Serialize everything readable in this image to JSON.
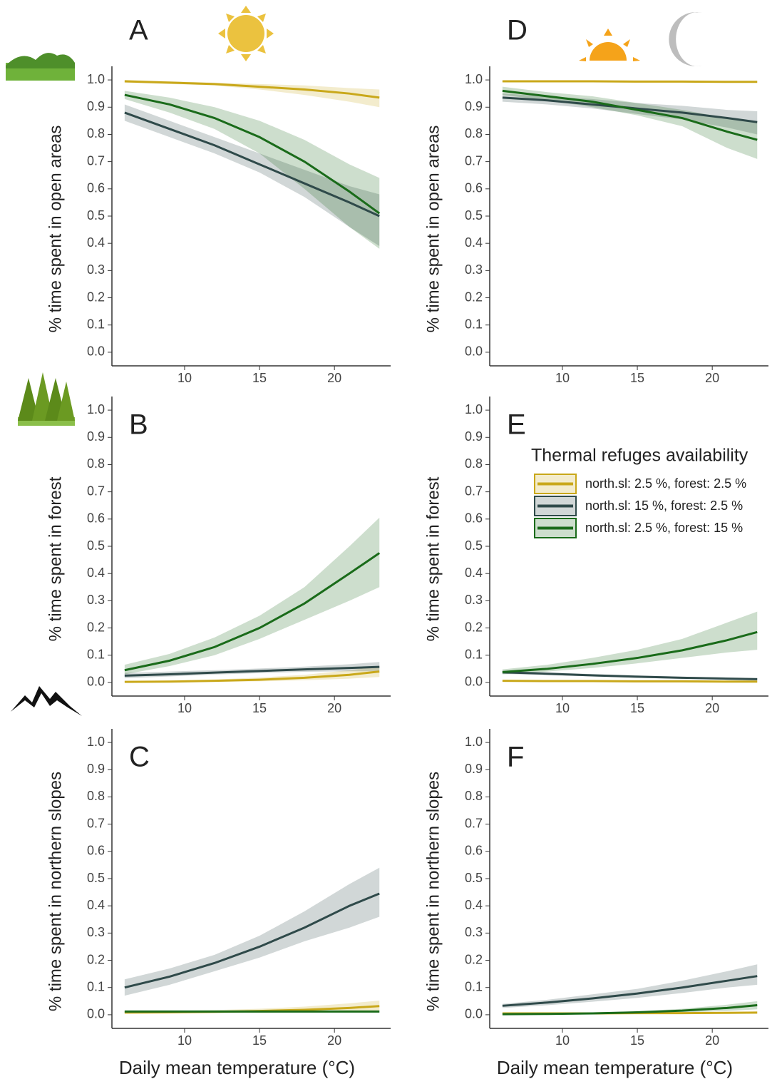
{
  "chart_data": [
    {
      "type": "line",
      "panel": "A",
      "ylabel": "% time spent in open areas",
      "xlim": [
        5.15,
        23.75
      ],
      "ylim": [
        -0.05,
        1.05
      ],
      "xticks": [
        10,
        15,
        20
      ],
      "yticks": [
        {
          "value": 0,
          "label": "0.0"
        },
        {
          "value": 0.1,
          "label": "0.1"
        },
        {
          "value": 0.2,
          "label": "0.2"
        },
        {
          "value": 0.3,
          "label": "0.3"
        },
        {
          "value": 0.4,
          "label": "0.4"
        },
        {
          "value": 0.5,
          "label": "0.5"
        },
        {
          "value": 0.6,
          "label": "0.6"
        },
        {
          "value": 0.7,
          "label": "0.7"
        },
        {
          "value": 0.8,
          "label": "0.8"
        },
        {
          "value": 0.9,
          "label": "0.9"
        },
        {
          "value": 1,
          "label": "1.0"
        }
      ],
      "x": [
        6,
        9,
        12,
        15,
        18,
        21,
        23
      ],
      "series": [
        {
          "color": "#c9a81a",
          "values": [
            0.995,
            0.99,
            0.985,
            0.975,
            0.965,
            0.95,
            0.935
          ],
          "lower": [
            0.99,
            0.985,
            0.98,
            0.965,
            0.945,
            0.92,
            0.9
          ],
          "upper": [
            1.0,
            0.995,
            0.99,
            0.985,
            0.98,
            0.97,
            0.965
          ]
        },
        {
          "color": "#2f4a4a",
          "values": [
            0.88,
            0.82,
            0.76,
            0.69,
            0.62,
            0.55,
            0.5
          ],
          "lower": [
            0.85,
            0.79,
            0.73,
            0.66,
            0.57,
            0.46,
            0.39
          ],
          "upper": [
            0.91,
            0.85,
            0.79,
            0.73,
            0.67,
            0.61,
            0.58
          ]
        },
        {
          "color": "#1a6b1a",
          "values": [
            0.945,
            0.91,
            0.86,
            0.79,
            0.7,
            0.59,
            0.51
          ],
          "lower": [
            0.93,
            0.88,
            0.82,
            0.73,
            0.6,
            0.46,
            0.38
          ],
          "upper": [
            0.96,
            0.935,
            0.9,
            0.85,
            0.78,
            0.69,
            0.64
          ]
        }
      ]
    },
    {
      "type": "line",
      "panel": "B",
      "ylabel": "% time spent in forest",
      "xlim": [
        5.15,
        23.75
      ],
      "ylim": [
        -0.05,
        1.05
      ],
      "xticks": [
        10,
        15,
        20
      ],
      "yticks": [
        {
          "value": 0,
          "label": "0.0"
        },
        {
          "value": 0.1,
          "label": "0.1"
        },
        {
          "value": 0.2,
          "label": "0.2"
        },
        {
          "value": 0.3,
          "label": "0.3"
        },
        {
          "value": 0.4,
          "label": "0.4"
        },
        {
          "value": 0.5,
          "label": "0.5"
        },
        {
          "value": 0.6,
          "label": "0.6"
        },
        {
          "value": 0.7,
          "label": "0.7"
        },
        {
          "value": 0.8,
          "label": "0.8"
        },
        {
          "value": 0.9,
          "label": "0.9"
        },
        {
          "value": 1,
          "label": "1.0"
        }
      ],
      "x": [
        6,
        9,
        12,
        15,
        18,
        21,
        23
      ],
      "series": [
        {
          "color": "#c9a81a",
          "values": [
            0.002,
            0.003,
            0.006,
            0.01,
            0.017,
            0.028,
            0.04
          ],
          "lower": [
            0,
            0.001,
            0.002,
            0.004,
            0.008,
            0.014,
            0.02
          ],
          "upper": [
            0.005,
            0.007,
            0.011,
            0.018,
            0.028,
            0.045,
            0.06
          ]
        },
        {
          "color": "#2f4a4a",
          "values": [
            0.025,
            0.03,
            0.036,
            0.042,
            0.048,
            0.053,
            0.057
          ],
          "lower": [
            0.015,
            0.022,
            0.029,
            0.034,
            0.039,
            0.041,
            0.041
          ],
          "upper": [
            0.035,
            0.04,
            0.045,
            0.051,
            0.058,
            0.067,
            0.075
          ]
        },
        {
          "color": "#1a6b1a",
          "values": [
            0.045,
            0.08,
            0.13,
            0.2,
            0.29,
            0.4,
            0.475
          ],
          "lower": [
            0.03,
            0.06,
            0.1,
            0.16,
            0.23,
            0.3,
            0.35
          ],
          "upper": [
            0.065,
            0.105,
            0.165,
            0.245,
            0.35,
            0.5,
            0.605
          ]
        }
      ]
    },
    {
      "type": "line",
      "panel": "C",
      "ylabel": "% time spent in northern slopes",
      "xlabel": "Daily mean temperature (°C)",
      "xlim": [
        5.15,
        23.75
      ],
      "ylim": [
        -0.05,
        1.05
      ],
      "xticks": [
        10,
        15,
        20
      ],
      "yticks": [
        {
          "value": 0,
          "label": "0.0"
        },
        {
          "value": 0.1,
          "label": "0.1"
        },
        {
          "value": 0.2,
          "label": "0.2"
        },
        {
          "value": 0.3,
          "label": "0.3"
        },
        {
          "value": 0.4,
          "label": "0.4"
        },
        {
          "value": 0.5,
          "label": "0.5"
        },
        {
          "value": 0.6,
          "label": "0.6"
        },
        {
          "value": 0.7,
          "label": "0.7"
        },
        {
          "value": 0.8,
          "label": "0.8"
        },
        {
          "value": 0.9,
          "label": "0.9"
        },
        {
          "value": 1,
          "label": "1.0"
        }
      ],
      "x": [
        6,
        9,
        12,
        15,
        18,
        21,
        23
      ],
      "series": [
        {
          "color": "#c9a81a",
          "values": [
            0.008,
            0.009,
            0.011,
            0.014,
            0.018,
            0.025,
            0.032
          ],
          "lower": [
            0.005,
            0.005,
            0.006,
            0.007,
            0.009,
            0.011,
            0.013
          ],
          "upper": [
            0.012,
            0.014,
            0.017,
            0.022,
            0.03,
            0.042,
            0.052
          ]
        },
        {
          "color": "#2f4a4a",
          "values": [
            0.1,
            0.14,
            0.19,
            0.25,
            0.32,
            0.4,
            0.445
          ],
          "lower": [
            0.07,
            0.11,
            0.16,
            0.21,
            0.27,
            0.32,
            0.36
          ],
          "upper": [
            0.13,
            0.17,
            0.22,
            0.29,
            0.38,
            0.48,
            0.54
          ]
        },
        {
          "color": "#1a6b1a",
          "values": [
            0.012,
            0.012,
            0.012,
            0.012,
            0.012,
            0.012,
            0.012
          ],
          "lower": [
            0.009,
            0.009,
            0.009,
            0.009,
            0.009,
            0.009,
            0.009
          ],
          "upper": [
            0.015,
            0.015,
            0.015,
            0.015,
            0.015,
            0.015,
            0.015
          ]
        }
      ]
    },
    {
      "type": "line",
      "panel": "D",
      "ylabel": "% time spent in open areas",
      "xlim": [
        5.15,
        23.75
      ],
      "ylim": [
        -0.05,
        1.05
      ],
      "xticks": [
        10,
        15,
        20
      ],
      "yticks": [
        {
          "value": 0,
          "label": "0.0"
        },
        {
          "value": 0.1,
          "label": "0.1"
        },
        {
          "value": 0.2,
          "label": "0.2"
        },
        {
          "value": 0.3,
          "label": "0.3"
        },
        {
          "value": 0.4,
          "label": "0.4"
        },
        {
          "value": 0.5,
          "label": "0.5"
        },
        {
          "value": 0.6,
          "label": "0.6"
        },
        {
          "value": 0.7,
          "label": "0.7"
        },
        {
          "value": 0.8,
          "label": "0.8"
        },
        {
          "value": 0.9,
          "label": "0.9"
        },
        {
          "value": 1,
          "label": "1.0"
        }
      ],
      "x": [
        6,
        9,
        12,
        15,
        18,
        21,
        23
      ],
      "series": [
        {
          "color": "#c9a81a",
          "values": [
            0.995,
            0.995,
            0.995,
            0.994,
            0.994,
            0.993,
            0.993
          ],
          "lower": [
            0.992,
            0.992,
            0.992,
            0.991,
            0.991,
            0.99,
            0.99
          ],
          "upper": [
            0.998,
            0.998,
            0.998,
            0.997,
            0.997,
            0.996,
            0.996
          ]
        },
        {
          "color": "#2f4a4a",
          "values": [
            0.935,
            0.925,
            0.91,
            0.895,
            0.88,
            0.86,
            0.845
          ],
          "lower": [
            0.92,
            0.91,
            0.895,
            0.875,
            0.855,
            0.825,
            0.8
          ],
          "upper": [
            0.95,
            0.94,
            0.93,
            0.915,
            0.905,
            0.89,
            0.885
          ]
        },
        {
          "color": "#1a6b1a",
          "values": [
            0.96,
            0.94,
            0.92,
            0.89,
            0.86,
            0.81,
            0.78
          ],
          "lower": [
            0.945,
            0.925,
            0.9,
            0.87,
            0.83,
            0.75,
            0.71
          ],
          "upper": [
            0.975,
            0.955,
            0.94,
            0.915,
            0.89,
            0.86,
            0.845
          ]
        }
      ]
    },
    {
      "type": "line",
      "panel": "E",
      "ylabel": "% time spent in forest",
      "legend_title": "Thermal refuges availability",
      "xlim": [
        5.15,
        23.75
      ],
      "ylim": [
        -0.05,
        1.05
      ],
      "xticks": [
        10,
        15,
        20
      ],
      "yticks": [
        {
          "value": 0,
          "label": "0.0"
        },
        {
          "value": 0.1,
          "label": "0.1"
        },
        {
          "value": 0.2,
          "label": "0.2"
        },
        {
          "value": 0.3,
          "label": "0.3"
        },
        {
          "value": 0.4,
          "label": "0.4"
        },
        {
          "value": 0.5,
          "label": "0.5"
        },
        {
          "value": 0.6,
          "label": "0.6"
        },
        {
          "value": 0.7,
          "label": "0.7"
        },
        {
          "value": 0.8,
          "label": "0.8"
        },
        {
          "value": 0.9,
          "label": "0.9"
        },
        {
          "value": 1,
          "label": "1.0"
        }
      ],
      "x": [
        6,
        9,
        12,
        15,
        18,
        21,
        23
      ],
      "series": [
        {
          "name": "north.sl: 2.5 %, forest: 2.5 %",
          "color": "#c9a81a",
          "values": [
            0.006,
            0.005,
            0.005,
            0.004,
            0.004,
            0.003,
            0.003
          ],
          "lower": [
            0.004,
            0.003,
            0.003,
            0.002,
            0.002,
            0.001,
            0.001
          ],
          "upper": [
            0.008,
            0.007,
            0.007,
            0.006,
            0.006,
            0.006,
            0.006
          ]
        },
        {
          "name": "north.sl: 15 %, forest: 2.5 %",
          "color": "#2f4a4a",
          "values": [
            0.037,
            0.032,
            0.026,
            0.021,
            0.017,
            0.014,
            0.012
          ],
          "lower": [
            0.031,
            0.027,
            0.022,
            0.017,
            0.013,
            0.01,
            0.008
          ],
          "upper": [
            0.043,
            0.037,
            0.031,
            0.026,
            0.021,
            0.018,
            0.016
          ]
        },
        {
          "name": "north.sl: 2.5 %, forest: 15 %",
          "color": "#1a6b1a",
          "values": [
            0.038,
            0.05,
            0.068,
            0.09,
            0.118,
            0.155,
            0.185
          ],
          "lower": [
            0.03,
            0.04,
            0.053,
            0.07,
            0.09,
            0.11,
            0.12
          ],
          "upper": [
            0.048,
            0.065,
            0.09,
            0.12,
            0.16,
            0.22,
            0.26
          ]
        }
      ]
    },
    {
      "type": "line",
      "panel": "F",
      "ylabel": "% time spent in northern slopes",
      "xlabel": "Daily mean temperature (°C)",
      "xlim": [
        5.15,
        23.75
      ],
      "ylim": [
        -0.05,
        1.05
      ],
      "xticks": [
        10,
        15,
        20
      ],
      "yticks": [
        {
          "value": 0,
          "label": "0.0"
        },
        {
          "value": 0.1,
          "label": "0.1"
        },
        {
          "value": 0.2,
          "label": "0.2"
        },
        {
          "value": 0.3,
          "label": "0.3"
        },
        {
          "value": 0.4,
          "label": "0.4"
        },
        {
          "value": 0.5,
          "label": "0.5"
        },
        {
          "value": 0.6,
          "label": "0.6"
        },
        {
          "value": 0.7,
          "label": "0.7"
        },
        {
          "value": 0.8,
          "label": "0.8"
        },
        {
          "value": 0.9,
          "label": "0.9"
        },
        {
          "value": 1,
          "label": "1.0"
        }
      ],
      "x": [
        6,
        9,
        12,
        15,
        18,
        21,
        23
      ],
      "series": [
        {
          "color": "#c9a81a",
          "values": [
            0.005,
            0.005,
            0.005,
            0.006,
            0.006,
            0.007,
            0.008
          ],
          "lower": [
            0.003,
            0.003,
            0.003,
            0.004,
            0.004,
            0.004,
            0.004
          ],
          "upper": [
            0.007,
            0.007,
            0.007,
            0.008,
            0.009,
            0.01,
            0.012
          ]
        },
        {
          "color": "#2f4a4a",
          "values": [
            0.033,
            0.045,
            0.06,
            0.078,
            0.1,
            0.125,
            0.142
          ],
          "lower": [
            0.025,
            0.035,
            0.048,
            0.062,
            0.08,
            0.1,
            0.11
          ],
          "upper": [
            0.04,
            0.055,
            0.075,
            0.095,
            0.125,
            0.16,
            0.185
          ]
        },
        {
          "color": "#1a6b1a",
          "values": [
            0.002,
            0.003,
            0.005,
            0.009,
            0.015,
            0.025,
            0.035
          ],
          "lower": [
            0.001,
            0.002,
            0.003,
            0.005,
            0.009,
            0.014,
            0.02
          ],
          "upper": [
            0.003,
            0.005,
            0.008,
            0.013,
            0.022,
            0.037,
            0.05
          ]
        }
      ]
    }
  ]
}
